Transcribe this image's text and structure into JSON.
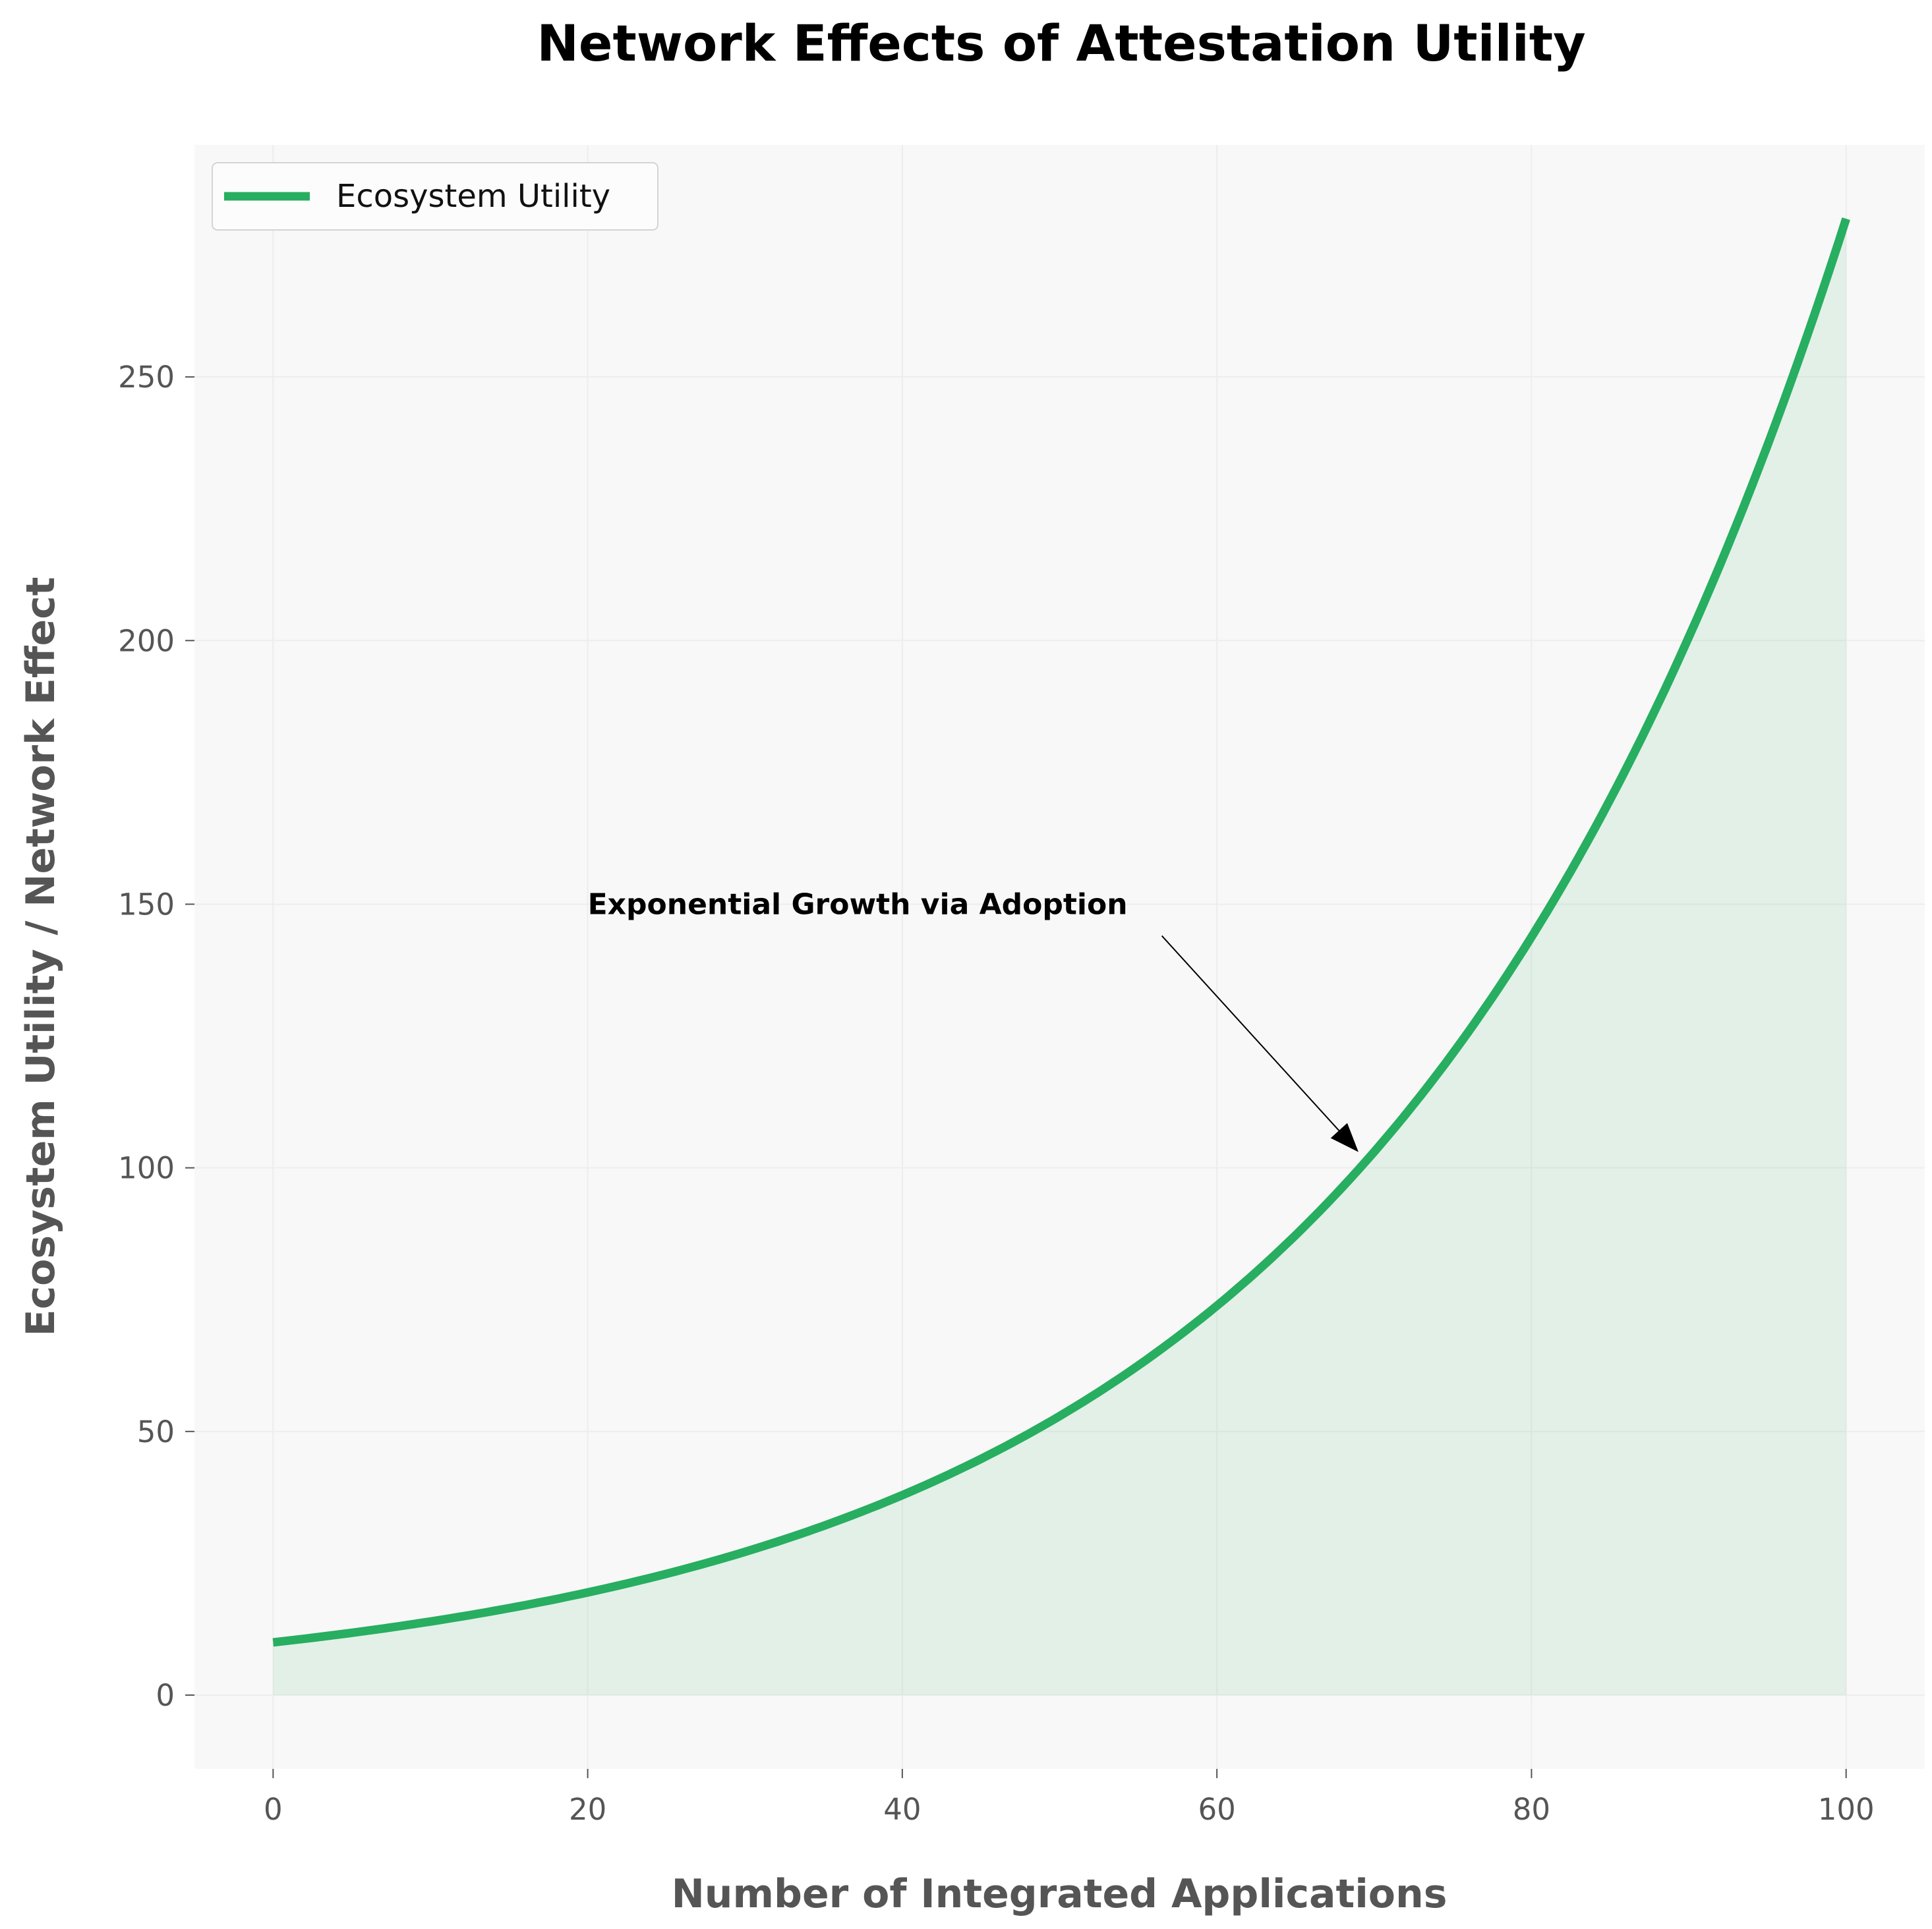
{
  "chart_data": {
    "type": "area",
    "title": "Network Effects of Attestation Utility",
    "xlabel": "Number of Integrated Applications",
    "ylabel": "Ecosystem Utility / Network Effect",
    "xlim": [
      -5,
      105
    ],
    "ylim": [
      -14,
      294
    ],
    "xticks": [
      0,
      20,
      40,
      60,
      80,
      100
    ],
    "yticks": [
      0,
      50,
      100,
      150,
      200,
      250
    ],
    "grid": true,
    "legend_position": "upper-left",
    "series": [
      {
        "name": "Ecosystem Utility",
        "color": "#27ae60",
        "fill": true,
        "fill_color": "#27ae60",
        "x": [
          0,
          5,
          10,
          15,
          20,
          25,
          30,
          35,
          40,
          45,
          50,
          55,
          60,
          65,
          70,
          75,
          80,
          85,
          90,
          95,
          100
        ],
        "y": [
          10,
          11.8,
          14.0,
          16.6,
          19.6,
          23.2,
          27.5,
          32.5,
          38.5,
          45.5,
          53.9,
          63.8,
          75.5,
          89.3,
          105.7,
          125.1,
          148.0,
          175.2,
          207.3,
          245.3,
          280
        ]
      }
    ],
    "annotations": [
      {
        "text": "Exponential Growth via Adoption",
        "xy": [
          69,
          103
        ],
        "xytext": [
          20,
          150
        ]
      }
    ]
  }
}
